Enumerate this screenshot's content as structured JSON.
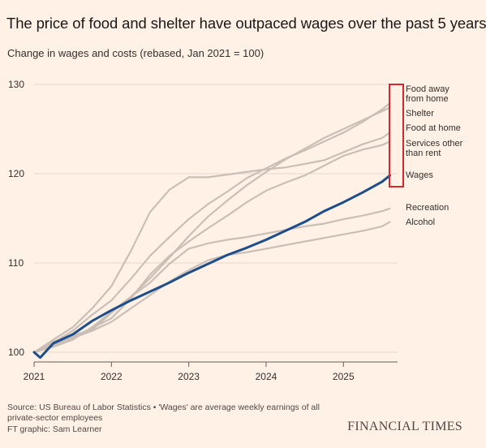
{
  "header": {
    "title": "The price of food and shelter have outpaced wages over the past 5 years",
    "subtitle": "Change in wages and costs (rebased, Jan 2021 = 100)"
  },
  "footer": {
    "source": "Source: US Bureau of Labor Statistics • 'Wages' are average weekly earnings of all private-sector employees",
    "credit": "FT graphic: Sam Learner",
    "brand": "FINANCIAL TIMES"
  },
  "colors": {
    "background": "#fff1e5",
    "wages": "#1c4d8c",
    "other_series": "#c9bfb7",
    "grid": "#e4d8ce",
    "highlight_box": "#d7262e",
    "label": "#33302e"
  },
  "chart_data": {
    "type": "line",
    "title": "",
    "xlabel": "",
    "ylabel": "",
    "xlim": [
      2021.0,
      2025.7
    ],
    "ylim": [
      100,
      130
    ],
    "x_ticks": [
      2021,
      2022,
      2023,
      2024,
      2025
    ],
    "y_ticks": [
      100,
      110,
      120,
      130
    ],
    "grid": true,
    "legend": "direct-labels-right",
    "series": [
      {
        "name": "Food away from home",
        "emphasis": false,
        "points": [
          [
            2021.0,
            100
          ],
          [
            2021.25,
            101.1
          ],
          [
            2021.5,
            102.4
          ],
          [
            2021.75,
            104.2
          ],
          [
            2022.0,
            105.8
          ],
          [
            2022.25,
            108.2
          ],
          [
            2022.5,
            110.8
          ],
          [
            2022.75,
            112.9
          ],
          [
            2023.0,
            114.9
          ],
          [
            2023.25,
            116.6
          ],
          [
            2023.5,
            118.0
          ],
          [
            2023.75,
            119.5
          ],
          [
            2024.0,
            120.6
          ],
          [
            2024.25,
            121.7
          ],
          [
            2024.5,
            122.6
          ],
          [
            2024.75,
            123.6
          ],
          [
            2025.0,
            124.6
          ],
          [
            2025.25,
            125.8
          ],
          [
            2025.5,
            127.2
          ],
          [
            2025.6,
            127.9
          ]
        ]
      },
      {
        "name": "Shelter",
        "emphasis": false,
        "points": [
          [
            2021.0,
            100
          ],
          [
            2021.25,
            100.6
          ],
          [
            2021.5,
            101.4
          ],
          [
            2021.75,
            102.8
          ],
          [
            2022.0,
            104.5
          ],
          [
            2022.25,
            106.2
          ],
          [
            2022.5,
            108.3
          ],
          [
            2022.75,
            110.6
          ],
          [
            2023.0,
            113.0
          ],
          [
            2023.25,
            115.2
          ],
          [
            2023.5,
            117.0
          ],
          [
            2023.75,
            118.7
          ],
          [
            2024.0,
            120.2
          ],
          [
            2024.25,
            121.6
          ],
          [
            2024.5,
            122.8
          ],
          [
            2024.75,
            124.0
          ],
          [
            2025.0,
            125.0
          ],
          [
            2025.25,
            126.0
          ],
          [
            2025.5,
            127.0
          ],
          [
            2025.6,
            127.4
          ]
        ]
      },
      {
        "name": "Food at home",
        "emphasis": false,
        "points": [
          [
            2021.0,
            100
          ],
          [
            2021.25,
            101.4
          ],
          [
            2021.5,
            102.8
          ],
          [
            2021.75,
            104.9
          ],
          [
            2022.0,
            107.4
          ],
          [
            2022.25,
            111.3
          ],
          [
            2022.5,
            115.7
          ],
          [
            2022.75,
            118.2
          ],
          [
            2023.0,
            119.6
          ],
          [
            2023.25,
            119.6
          ],
          [
            2023.5,
            119.9
          ],
          [
            2023.75,
            120.2
          ],
          [
            2024.0,
            120.5
          ],
          [
            2024.25,
            120.7
          ],
          [
            2024.5,
            121.1
          ],
          [
            2024.75,
            121.5
          ],
          [
            2025.0,
            122.4
          ],
          [
            2025.25,
            123.3
          ],
          [
            2025.5,
            124.0
          ],
          [
            2025.6,
            124.6
          ]
        ]
      },
      {
        "name": "Services other than rent",
        "emphasis": false,
        "points": [
          [
            2021.0,
            100
          ],
          [
            2021.25,
            100.9
          ],
          [
            2021.5,
            101.7
          ],
          [
            2021.75,
            102.7
          ],
          [
            2022.0,
            103.8
          ],
          [
            2022.25,
            106.0
          ],
          [
            2022.5,
            108.7
          ],
          [
            2022.75,
            110.8
          ],
          [
            2023.0,
            112.4
          ],
          [
            2023.25,
            113.9
          ],
          [
            2023.5,
            115.3
          ],
          [
            2023.75,
            116.8
          ],
          [
            2024.0,
            118.1
          ],
          [
            2024.25,
            119.0
          ],
          [
            2024.5,
            119.8
          ],
          [
            2024.75,
            120.9
          ],
          [
            2025.0,
            122.0
          ],
          [
            2025.25,
            122.7
          ],
          [
            2025.5,
            123.2
          ],
          [
            2025.6,
            123.6
          ]
        ]
      },
      {
        "name": "Wages",
        "emphasis": true,
        "points": [
          [
            2021.0,
            100
          ],
          [
            2021.08,
            99.4
          ],
          [
            2021.25,
            101.0
          ],
          [
            2021.5,
            102.0
          ],
          [
            2021.75,
            103.5
          ],
          [
            2022.0,
            104.7
          ],
          [
            2022.25,
            105.8
          ],
          [
            2022.5,
            106.8
          ],
          [
            2022.75,
            107.8
          ],
          [
            2023.0,
            108.9
          ],
          [
            2023.25,
            109.9
          ],
          [
            2023.5,
            110.9
          ],
          [
            2023.75,
            111.7
          ],
          [
            2024.0,
            112.6
          ],
          [
            2024.25,
            113.6
          ],
          [
            2024.5,
            114.6
          ],
          [
            2024.75,
            115.8
          ],
          [
            2025.0,
            116.8
          ],
          [
            2025.25,
            117.9
          ],
          [
            2025.5,
            119.1
          ],
          [
            2025.6,
            119.8
          ]
        ]
      },
      {
        "name": "Recreation",
        "emphasis": false,
        "points": [
          [
            2021.0,
            100
          ],
          [
            2021.25,
            101.2
          ],
          [
            2021.5,
            101.9
          ],
          [
            2021.75,
            102.5
          ],
          [
            2022.0,
            104.4
          ],
          [
            2022.25,
            106.2
          ],
          [
            2022.5,
            107.8
          ],
          [
            2022.75,
            109.9
          ],
          [
            2023.0,
            111.6
          ],
          [
            2023.25,
            112.2
          ],
          [
            2023.5,
            112.6
          ],
          [
            2023.75,
            112.9
          ],
          [
            2024.0,
            113.3
          ],
          [
            2024.25,
            113.7
          ],
          [
            2024.5,
            114.1
          ],
          [
            2024.75,
            114.4
          ],
          [
            2025.0,
            114.9
          ],
          [
            2025.25,
            115.3
          ],
          [
            2025.5,
            115.8
          ],
          [
            2025.6,
            116.1
          ]
        ]
      },
      {
        "name": "Alcohol",
        "emphasis": false,
        "points": [
          [
            2021.0,
            100
          ],
          [
            2021.25,
            100.8
          ],
          [
            2021.5,
            101.6
          ],
          [
            2021.75,
            102.4
          ],
          [
            2022.0,
            103.4
          ],
          [
            2022.25,
            104.9
          ],
          [
            2022.5,
            106.4
          ],
          [
            2022.75,
            107.9
          ],
          [
            2023.0,
            109.2
          ],
          [
            2023.25,
            110.3
          ],
          [
            2023.5,
            110.9
          ],
          [
            2023.75,
            111.2
          ],
          [
            2024.0,
            111.6
          ],
          [
            2024.25,
            112.0
          ],
          [
            2024.5,
            112.4
          ],
          [
            2024.75,
            112.8
          ],
          [
            2025.0,
            113.2
          ],
          [
            2025.25,
            113.6
          ],
          [
            2025.5,
            114.1
          ],
          [
            2025.6,
            114.6
          ]
        ]
      }
    ],
    "labels": [
      {
        "series": "Food away from home",
        "lines": [
          "Food away",
          "from home"
        ]
      },
      {
        "series": "Shelter",
        "lines": [
          "Shelter"
        ]
      },
      {
        "series": "Food at home",
        "lines": [
          "Food at home"
        ]
      },
      {
        "series": "Services other than rent",
        "lines": [
          "Services other",
          "than rent"
        ]
      },
      {
        "series": "Wages",
        "lines": [
          "Wages"
        ]
      },
      {
        "series": "Recreation",
        "lines": [
          "Recreation"
        ]
      },
      {
        "series": "Alcohol",
        "lines": [
          "Alcohol"
        ]
      }
    ],
    "highlight": {
      "series": [
        "Food away from home",
        "Shelter",
        "Food at home",
        "Services other than rent",
        "Wages"
      ],
      "style": "red-outline-box"
    }
  }
}
